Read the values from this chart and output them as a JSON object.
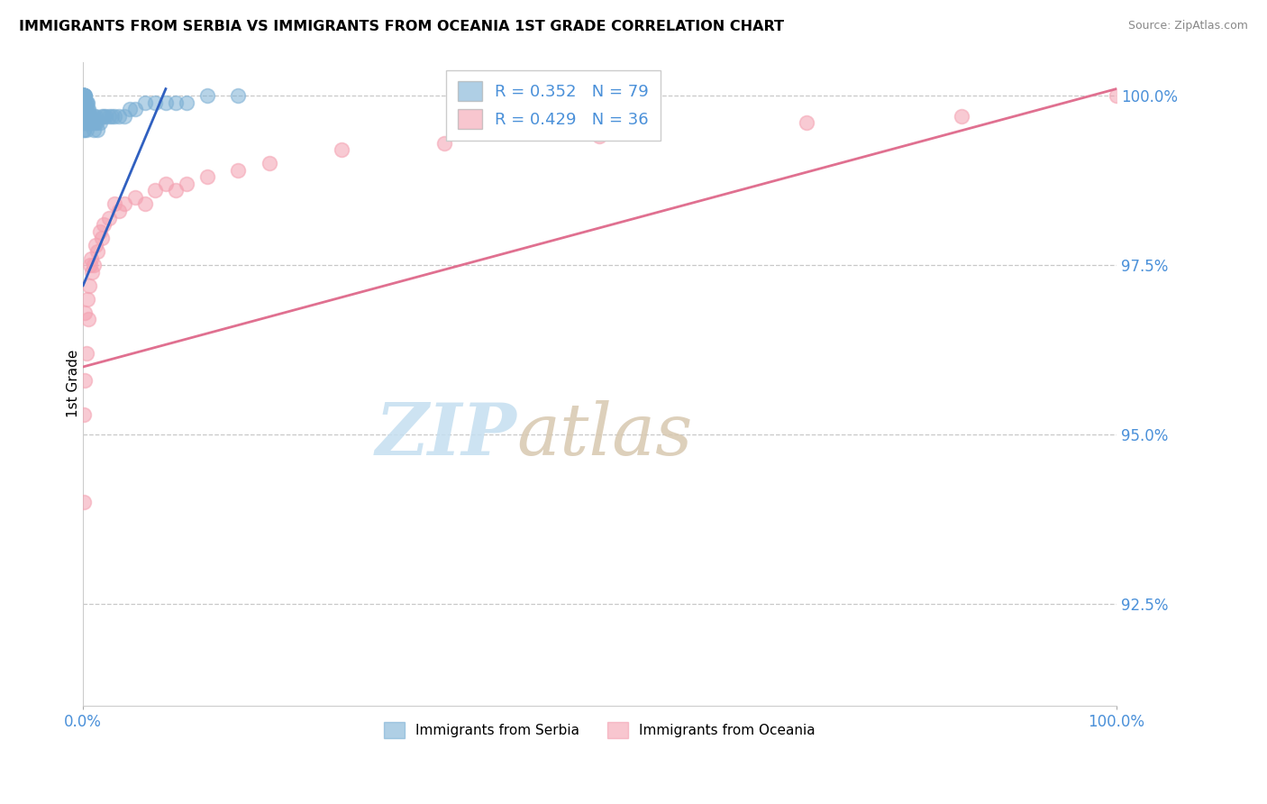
{
  "title": "IMMIGRANTS FROM SERBIA VS IMMIGRANTS FROM OCEANIA 1ST GRADE CORRELATION CHART",
  "source_text": "Source: ZipAtlas.com",
  "ylabel": "1st Grade",
  "legend_label1": "Immigrants from Serbia",
  "legend_label2": "Immigrants from Oceania",
  "R1": 0.352,
  "N1": 79,
  "R2": 0.429,
  "N2": 36,
  "xlim": [
    0.0,
    1.0
  ],
  "ylim": [
    0.91,
    1.005
  ],
  "yticks": [
    0.925,
    0.95,
    0.975,
    1.0
  ],
  "ytick_labels": [
    "92.5%",
    "95.0%",
    "97.5%",
    "100.0%"
  ],
  "color_serbia": "#7bafd4",
  "color_oceania": "#f4a0b0",
  "color_line_serbia": "#3060c0",
  "color_line_oceania": "#e07090",
  "color_tick_labels": "#4a90d9",
  "color_grid": "#c8c8c8",
  "watermark_zip": "ZIP",
  "watermark_atlas": "atlas",
  "watermark_color_zip": "#c5dff0",
  "watermark_color_atlas": "#d8c8b0",
  "serbia_x": [
    0.001,
    0.001,
    0.001,
    0.001,
    0.001,
    0.001,
    0.001,
    0.001,
    0.001,
    0.001,
    0.001,
    0.001,
    0.001,
    0.001,
    0.001,
    0.001,
    0.001,
    0.001,
    0.001,
    0.001,
    0.001,
    0.001,
    0.001,
    0.001,
    0.001,
    0.001,
    0.001,
    0.001,
    0.001,
    0.001,
    0.002,
    0.002,
    0.002,
    0.002,
    0.002,
    0.002,
    0.002,
    0.003,
    0.003,
    0.003,
    0.003,
    0.003,
    0.003,
    0.004,
    0.004,
    0.004,
    0.005,
    0.005,
    0.005,
    0.006,
    0.006,
    0.007,
    0.007,
    0.008,
    0.009,
    0.01,
    0.01,
    0.011,
    0.012,
    0.013,
    0.014,
    0.016,
    0.018,
    0.02,
    0.022,
    0.025,
    0.028,
    0.03,
    0.035,
    0.04,
    0.045,
    0.05,
    0.06,
    0.07,
    0.08,
    0.09,
    0.1,
    0.12,
    0.15
  ],
  "serbia_y": [
    1.0,
    1.0,
    1.0,
    1.0,
    1.0,
    1.0,
    1.0,
    1.0,
    1.0,
    1.0,
    1.0,
    1.0,
    1.0,
    1.0,
    1.0,
    1.0,
    0.999,
    0.999,
    0.999,
    0.999,
    0.998,
    0.998,
    0.998,
    0.997,
    0.997,
    0.997,
    0.996,
    0.996,
    0.995,
    0.995,
    1.0,
    1.0,
    0.999,
    0.999,
    0.998,
    0.997,
    0.996,
    0.999,
    0.999,
    0.998,
    0.997,
    0.996,
    0.995,
    0.999,
    0.998,
    0.997,
    0.998,
    0.997,
    0.996,
    0.997,
    0.996,
    0.997,
    0.996,
    0.997,
    0.996,
    0.997,
    0.995,
    0.996,
    0.997,
    0.996,
    0.995,
    0.996,
    0.997,
    0.997,
    0.997,
    0.997,
    0.997,
    0.997,
    0.997,
    0.997,
    0.998,
    0.998,
    0.999,
    0.999,
    0.999,
    0.999,
    0.999,
    1.0,
    1.0
  ],
  "oceania_x": [
    0.001,
    0.001,
    0.002,
    0.002,
    0.003,
    0.004,
    0.005,
    0.006,
    0.007,
    0.008,
    0.009,
    0.01,
    0.012,
    0.014,
    0.016,
    0.018,
    0.02,
    0.025,
    0.03,
    0.035,
    0.04,
    0.05,
    0.06,
    0.07,
    0.08,
    0.09,
    0.1,
    0.12,
    0.15,
    0.18,
    0.25,
    0.35,
    0.5,
    0.7,
    0.85,
    1.0
  ],
  "oceania_y": [
    0.94,
    0.953,
    0.958,
    0.968,
    0.962,
    0.97,
    0.967,
    0.972,
    0.975,
    0.976,
    0.974,
    0.975,
    0.978,
    0.977,
    0.98,
    0.979,
    0.981,
    0.982,
    0.984,
    0.983,
    0.984,
    0.985,
    0.984,
    0.986,
    0.987,
    0.986,
    0.987,
    0.988,
    0.989,
    0.99,
    0.992,
    0.993,
    0.994,
    0.996,
    0.997,
    1.0
  ],
  "line_serbia_x0": 0.0,
  "line_serbia_y0": 0.972,
  "line_serbia_x1": 0.08,
  "line_serbia_y1": 1.001,
  "line_oceania_x0": 0.0,
  "line_oceania_y0": 0.96,
  "line_oceania_x1": 1.0,
  "line_oceania_y1": 1.001
}
